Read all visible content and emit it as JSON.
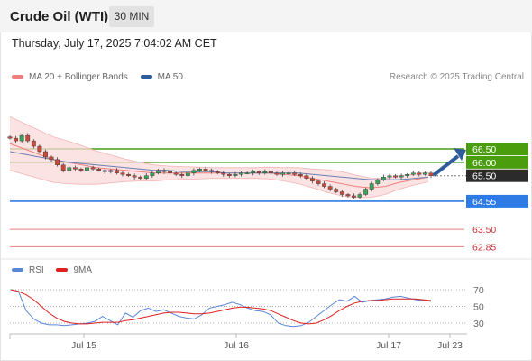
{
  "header": {
    "title": "Crude Oil (WTI)",
    "period": "30 MIN"
  },
  "datetime": "Thursday, July 17, 2025 7:04:02 AM CET",
  "legend": [
    {
      "label": "MA 20 + Bollinger Bands",
      "color": "#f08080"
    },
    {
      "label": "MA 50",
      "color": "#2e5c9a"
    }
  ],
  "copyright": "Research © 2025 Trading Central",
  "rsi_legend": [
    {
      "label": "RSI",
      "color": "#5b86d6"
    },
    {
      "label": "9MA",
      "color": "#e02020"
    }
  ],
  "chart_data": [
    {
      "type": "candlestick",
      "ylim": [
        62.3,
        67.2
      ],
      "x_tick_labels": [
        "Jul 15",
        "Jul 16",
        "Jul 17",
        "Jul 23"
      ],
      "price_levels": [
        {
          "label": "66.50",
          "value": 66.5,
          "color": "#4a9e0e",
          "style": "resistance"
        },
        {
          "label": "66.00",
          "value": 66.0,
          "color": "#4a9e0e",
          "style": "resistance"
        },
        {
          "label": "65.50",
          "value": 65.5,
          "color": "#333333",
          "style": "last"
        },
        {
          "label": "64.55",
          "value": 64.55,
          "color": "#2e7be6",
          "style": "pivot"
        },
        {
          "label": "63.50",
          "value": 63.5,
          "color": "#e88080",
          "style": "support"
        },
        {
          "label": "62.85",
          "value": 62.85,
          "color": "#e88080",
          "style": "support"
        }
      ],
      "candle_colors": {
        "up": "#3aa35a",
        "down": "#c94a3a"
      },
      "close_series": [
        66.9,
        66.8,
        67.0,
        66.8,
        66.6,
        66.4,
        66.2,
        66.1,
        65.9,
        65.7,
        65.8,
        65.75,
        65.7,
        65.8,
        65.75,
        65.7,
        65.65,
        65.7,
        65.6,
        65.55,
        65.5,
        65.45,
        65.4,
        65.5,
        65.6,
        65.7,
        65.65,
        65.6,
        65.55,
        65.5,
        65.6,
        65.7,
        65.75,
        65.7,
        65.65,
        65.6,
        65.55,
        65.5,
        65.55,
        65.6,
        65.6,
        65.65,
        65.6,
        65.65,
        65.6,
        65.55,
        65.6,
        65.6,
        65.55,
        65.5,
        65.4,
        65.3,
        65.2,
        65.1,
        65.0,
        64.9,
        64.8,
        64.75,
        64.7,
        64.8,
        65.0,
        65.2,
        65.35,
        65.45,
        65.5,
        65.45,
        65.5,
        65.55,
        65.6,
        65.55,
        65.6,
        65.5
      ],
      "ma20": [
        66.7,
        66.5,
        66.3,
        66.1,
        66.0,
        65.9,
        65.8,
        65.75,
        65.7,
        65.65,
        65.6,
        65.6,
        65.6,
        65.6,
        65.6,
        65.6,
        65.6,
        65.6,
        65.6,
        65.55,
        65.5,
        65.4,
        65.3,
        65.2,
        65.1,
        65.05,
        65.1,
        65.25,
        65.35,
        65.45
      ],
      "ma50": [
        66.4,
        66.3,
        66.2,
        66.1,
        66.0,
        65.95,
        65.9,
        65.85,
        65.8,
        65.75,
        65.7,
        65.7,
        65.65,
        65.65,
        65.65,
        65.6,
        65.6,
        65.6,
        65.6,
        65.6,
        65.6,
        65.55,
        65.5,
        65.45,
        65.4,
        65.35,
        65.35,
        65.35,
        65.4,
        65.45
      ],
      "arrow": {
        "direction": "up",
        "color": "#2e5c9a"
      }
    },
    {
      "type": "line",
      "title": "RSI",
      "ylim": [
        20,
        80
      ],
      "y_tick_labels": [
        "70",
        "50",
        "30"
      ],
      "y_ticks": [
        70,
        50,
        30
      ],
      "series": [
        {
          "name": "RSI",
          "color": "#5b86d6",
          "values": [
            70,
            68,
            45,
            35,
            30,
            28,
            28,
            27,
            28,
            29,
            30,
            32,
            38,
            33,
            28,
            42,
            37,
            45,
            48,
            44,
            46,
            42,
            38,
            36,
            35,
            40,
            48,
            50,
            52,
            55,
            52,
            48,
            45,
            44,
            40,
            30,
            27,
            26,
            27,
            31,
            38,
            45,
            52,
            58,
            56,
            62,
            55,
            57,
            58,
            59,
            61,
            62,
            60,
            58,
            57,
            56
          ]
        },
        {
          "name": "9MA",
          "color": "#e02020",
          "values": [
            70,
            68,
            64,
            58,
            50,
            42,
            36,
            32,
            30,
            29,
            29,
            30,
            31,
            31,
            31,
            33,
            34,
            36,
            38,
            40,
            42,
            43,
            43,
            42,
            41,
            41,
            42,
            44,
            46,
            48,
            49,
            49,
            48,
            47,
            45,
            41,
            37,
            33,
            30,
            29,
            30,
            34,
            39,
            45,
            50,
            54,
            56,
            57,
            57,
            58,
            59,
            59,
            59,
            59,
            58,
            57
          ]
        }
      ]
    }
  ]
}
